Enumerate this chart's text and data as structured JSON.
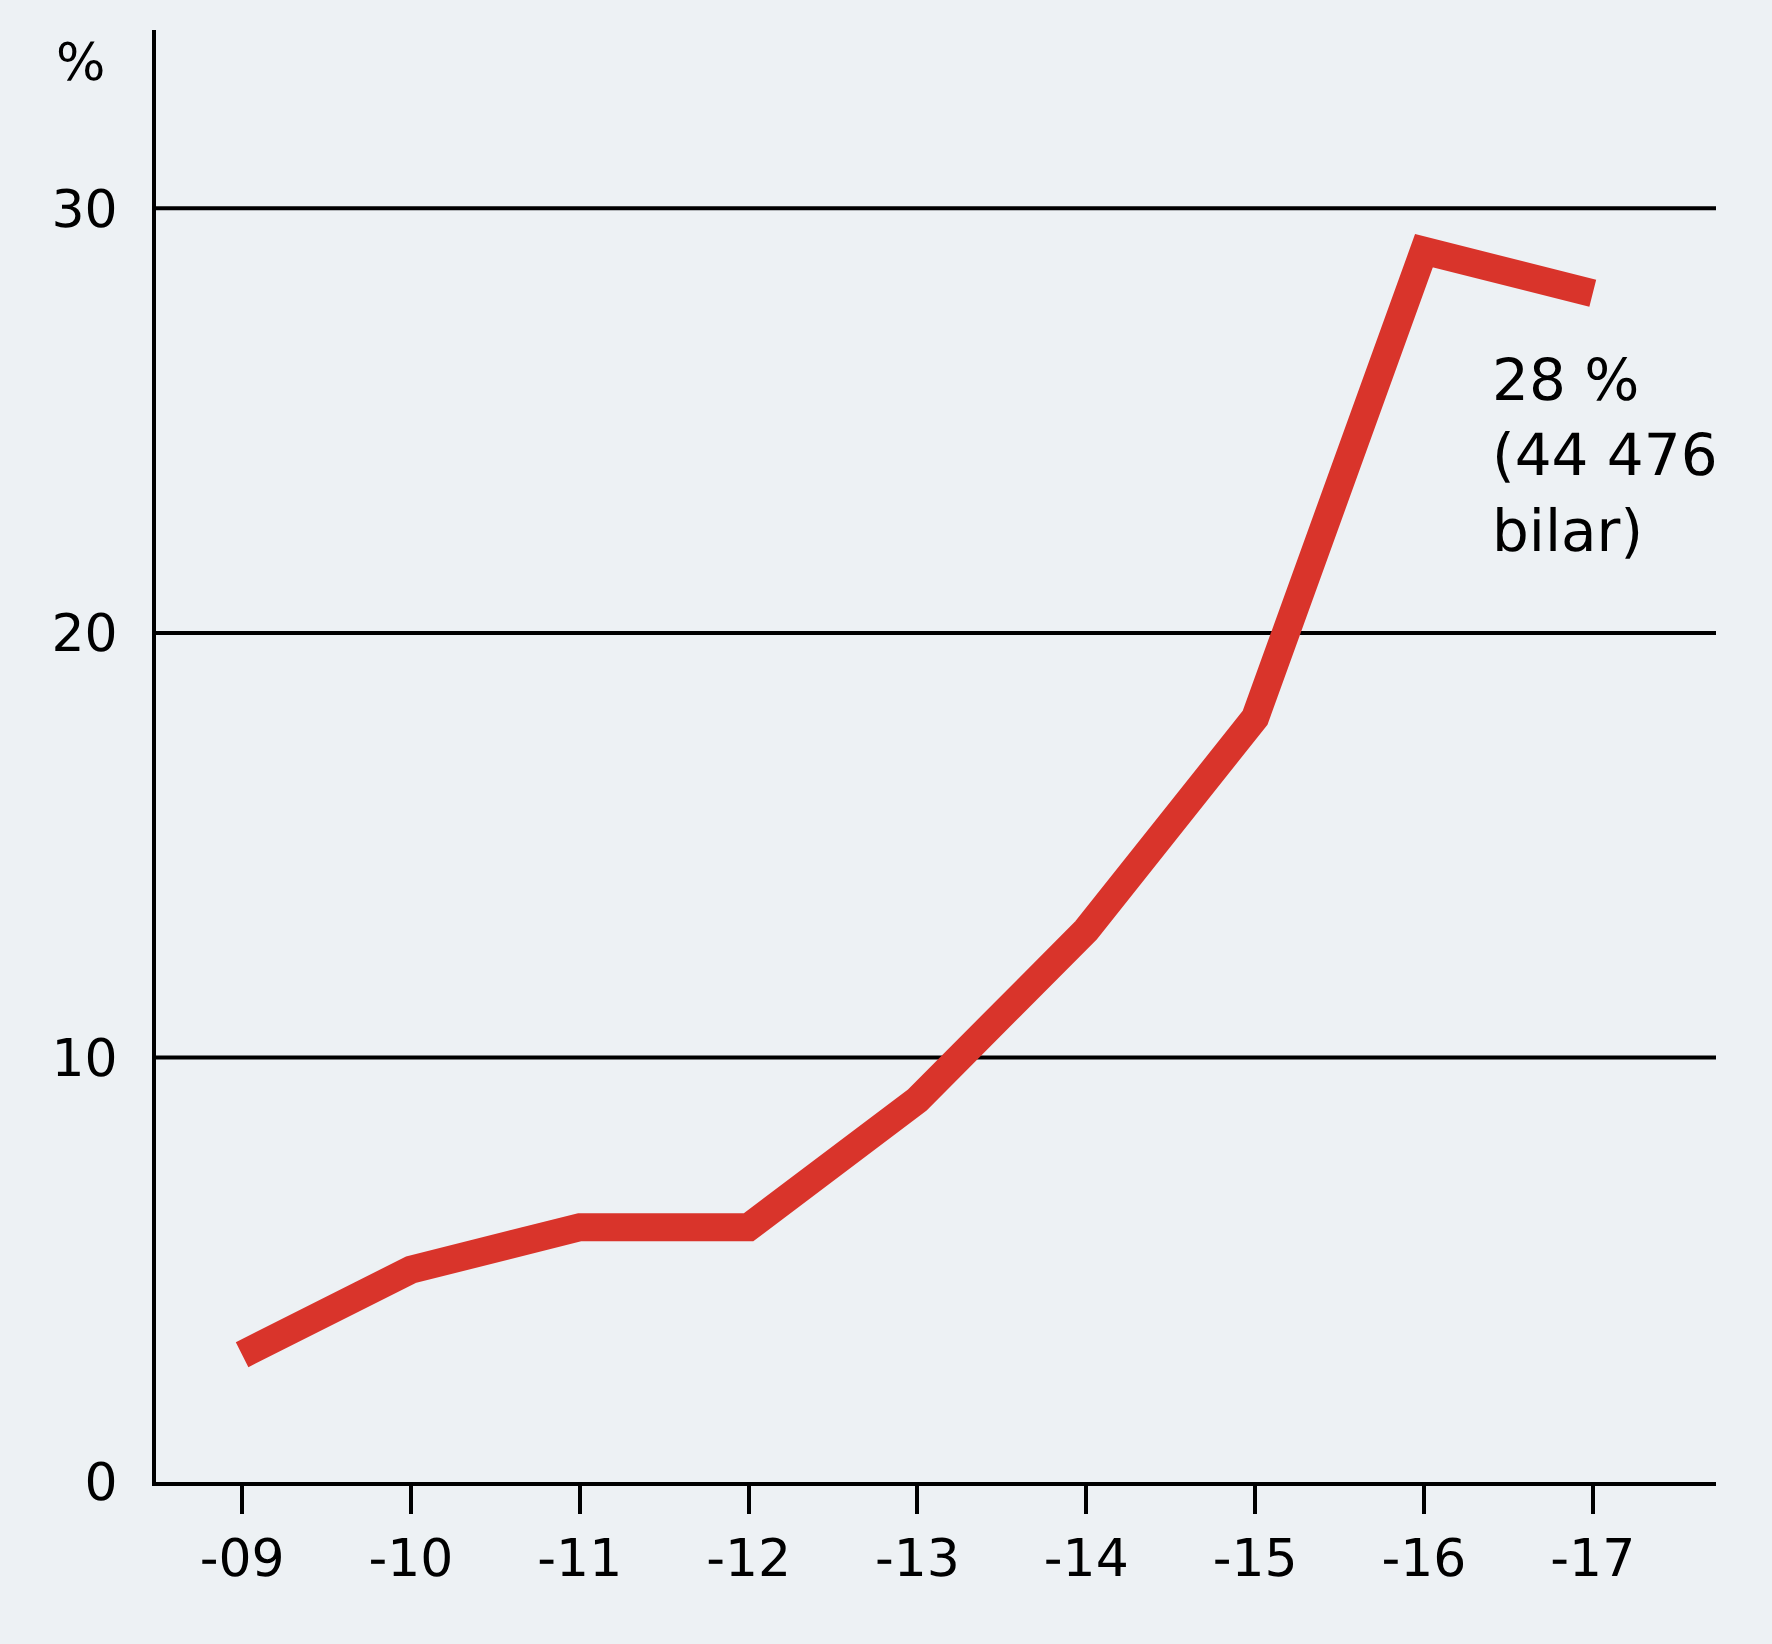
{
  "chart_data": {
    "type": "line",
    "ylabel": "%",
    "categories": [
      "-09",
      "-10",
      "-11",
      "-12",
      "-13",
      "-14",
      "-15",
      "-16",
      "-17"
    ],
    "series": [
      {
        "color": "#d9342b",
        "values": [
          3,
          5,
          6,
          6,
          9,
          13,
          18,
          29,
          28
        ]
      }
    ],
    "ylim": [
      0,
      34.2
    ],
    "yticks": [
      0,
      10,
      20,
      30
    ],
    "grid": "y",
    "marker": "none",
    "line_style": "solid",
    "annotations": [
      {
        "text": "28 %\n(44 476\nbilar)",
        "x": "-17",
        "y": 28
      }
    ]
  }
}
